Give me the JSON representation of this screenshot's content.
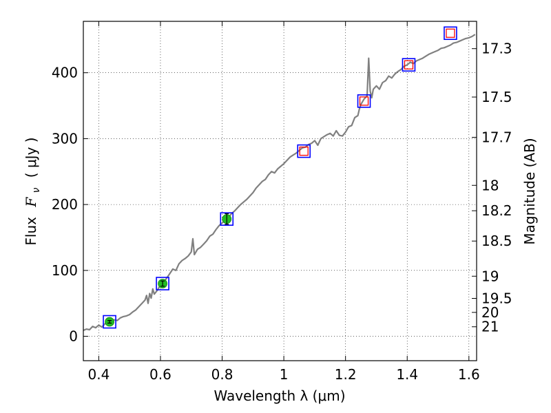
{
  "chart_data": {
    "type": "line",
    "title": "",
    "xlabel": "Wavelength  λ (μm)",
    "ylabel": "Flux",
    "ylabel_symbol": "F",
    "ylabel_subscript": "ν",
    "ylabel_unit": "( μJy )",
    "right_ylabel": "Magnitude (AB)",
    "xlim": [
      0.35,
      1.625
    ],
    "ylim": [
      -37,
      478
    ],
    "grid": true,
    "x_ticks": [
      0.4,
      0.6,
      0.8,
      1.0,
      1.2,
      1.4,
      1.6
    ],
    "x_tick_labels": [
      "0.4",
      "0.6",
      "0.8",
      "1",
      "1.2",
      "1.4",
      "1.6"
    ],
    "y_ticks": [
      0,
      100,
      200,
      300,
      400
    ],
    "y_tick_labels": [
      "0",
      "100",
      "200",
      "300",
      "400"
    ],
    "right_ticks": [
      {
        "value": 17.3,
        "label": "17.3"
      },
      {
        "value": 17.5,
        "label": "17.5"
      },
      {
        "value": 17.7,
        "label": "17.7"
      },
      {
        "value": 18,
        "label": "18"
      },
      {
        "value": 18.2,
        "label": "18.2"
      },
      {
        "value": 18.5,
        "label": "18.5"
      },
      {
        "value": 19,
        "label": "19"
      },
      {
        "value": 19.5,
        "label": "19.5"
      },
      {
        "value": 20,
        "label": "20"
      },
      {
        "value": 21,
        "label": "21"
      }
    ],
    "colors": {
      "spectrum": "#808080",
      "model_box": "#0000ff",
      "obs_box": "#ff0000",
      "obs_point": "#22bb22"
    },
    "series": [
      {
        "name": "spectrum",
        "x": [
          0.35,
          0.36,
          0.37,
          0.38,
          0.39,
          0.4,
          0.41,
          0.42,
          0.43,
          0.44,
          0.45,
          0.46,
          0.47,
          0.48,
          0.49,
          0.5,
          0.51,
          0.52,
          0.53,
          0.54,
          0.55,
          0.555,
          0.56,
          0.565,
          0.57,
          0.575,
          0.58,
          0.59,
          0.6,
          0.61,
          0.62,
          0.63,
          0.64,
          0.65,
          0.66,
          0.67,
          0.68,
          0.69,
          0.7,
          0.705,
          0.71,
          0.72,
          0.73,
          0.74,
          0.75,
          0.76,
          0.77,
          0.78,
          0.79,
          0.8,
          0.81,
          0.82,
          0.83,
          0.84,
          0.85,
          0.86,
          0.87,
          0.88,
          0.89,
          0.9,
          0.91,
          0.92,
          0.93,
          0.94,
          0.95,
          0.96,
          0.97,
          0.98,
          0.99,
          1.0,
          1.01,
          1.02,
          1.03,
          1.04,
          1.05,
          1.06,
          1.07,
          1.08,
          1.09,
          1.1,
          1.11,
          1.12,
          1.13,
          1.14,
          1.15,
          1.16,
          1.17,
          1.18,
          1.19,
          1.2,
          1.21,
          1.22,
          1.23,
          1.24,
          1.245,
          1.25,
          1.26,
          1.27,
          1.275,
          1.28,
          1.285,
          1.29,
          1.3,
          1.31,
          1.32,
          1.33,
          1.34,
          1.35,
          1.36,
          1.37,
          1.38,
          1.39,
          1.4,
          1.41,
          1.42,
          1.43,
          1.44,
          1.45,
          1.46,
          1.47,
          1.48,
          1.49,
          1.5,
          1.51,
          1.52,
          1.53,
          1.54,
          1.55,
          1.56,
          1.57,
          1.58,
          1.59,
          1.6,
          1.61,
          1.62
        ],
        "y": [
          9,
          11,
          10,
          15,
          13,
          17,
          14,
          19,
          21,
          23,
          25,
          24,
          28,
          30,
          31,
          33,
          37,
          40,
          45,
          50,
          55,
          62,
          50,
          65,
          58,
          72,
          64,
          70,
          78,
          82,
          88,
          95,
          102,
          100,
          110,
          115,
          118,
          122,
          128,
          148,
          124,
          132,
          135,
          140,
          145,
          152,
          155,
          162,
          168,
          172,
          176,
          180,
          186,
          190,
          195,
          200,
          204,
          208,
          213,
          218,
          225,
          230,
          235,
          238,
          245,
          250,
          248,
          254,
          258,
          262,
          267,
          272,
          275,
          278,
          282,
          286,
          287,
          291,
          293,
          297,
          290,
          300,
          303,
          306,
          308,
          304,
          312,
          305,
          304,
          310,
          318,
          320,
          332,
          335,
          345,
          352,
          360,
          365,
          422,
          372,
          362,
          375,
          380,
          375,
          385,
          388,
          395,
          392,
          398,
          402,
          405,
          410,
          412,
          416,
          414,
          418,
          420,
          422,
          425,
          428,
          430,
          432,
          434,
          437,
          438,
          440,
          442,
          445,
          446,
          448,
          450,
          452,
          453,
          455,
          458
        ]
      },
      {
        "name": "model-photometry",
        "marker": "blue-square",
        "x": [
          0.435,
          0.607,
          0.815,
          1.065,
          1.26,
          1.405,
          1.54
        ],
        "y": [
          22,
          80,
          178,
          281,
          357,
          412,
          460
        ]
      },
      {
        "name": "observed-photometry",
        "marker": "red-square",
        "x": [
          1.065,
          1.26,
          1.405,
          1.54
        ],
        "y": [
          281,
          357,
          412,
          460
        ]
      },
      {
        "name": "observed-photometry-optical",
        "marker": "green-circle",
        "x": [
          0.435,
          0.607,
          0.815
        ],
        "y": [
          22,
          80,
          178
        ],
        "yerr": [
          2,
          4,
          8
        ]
      }
    ]
  }
}
